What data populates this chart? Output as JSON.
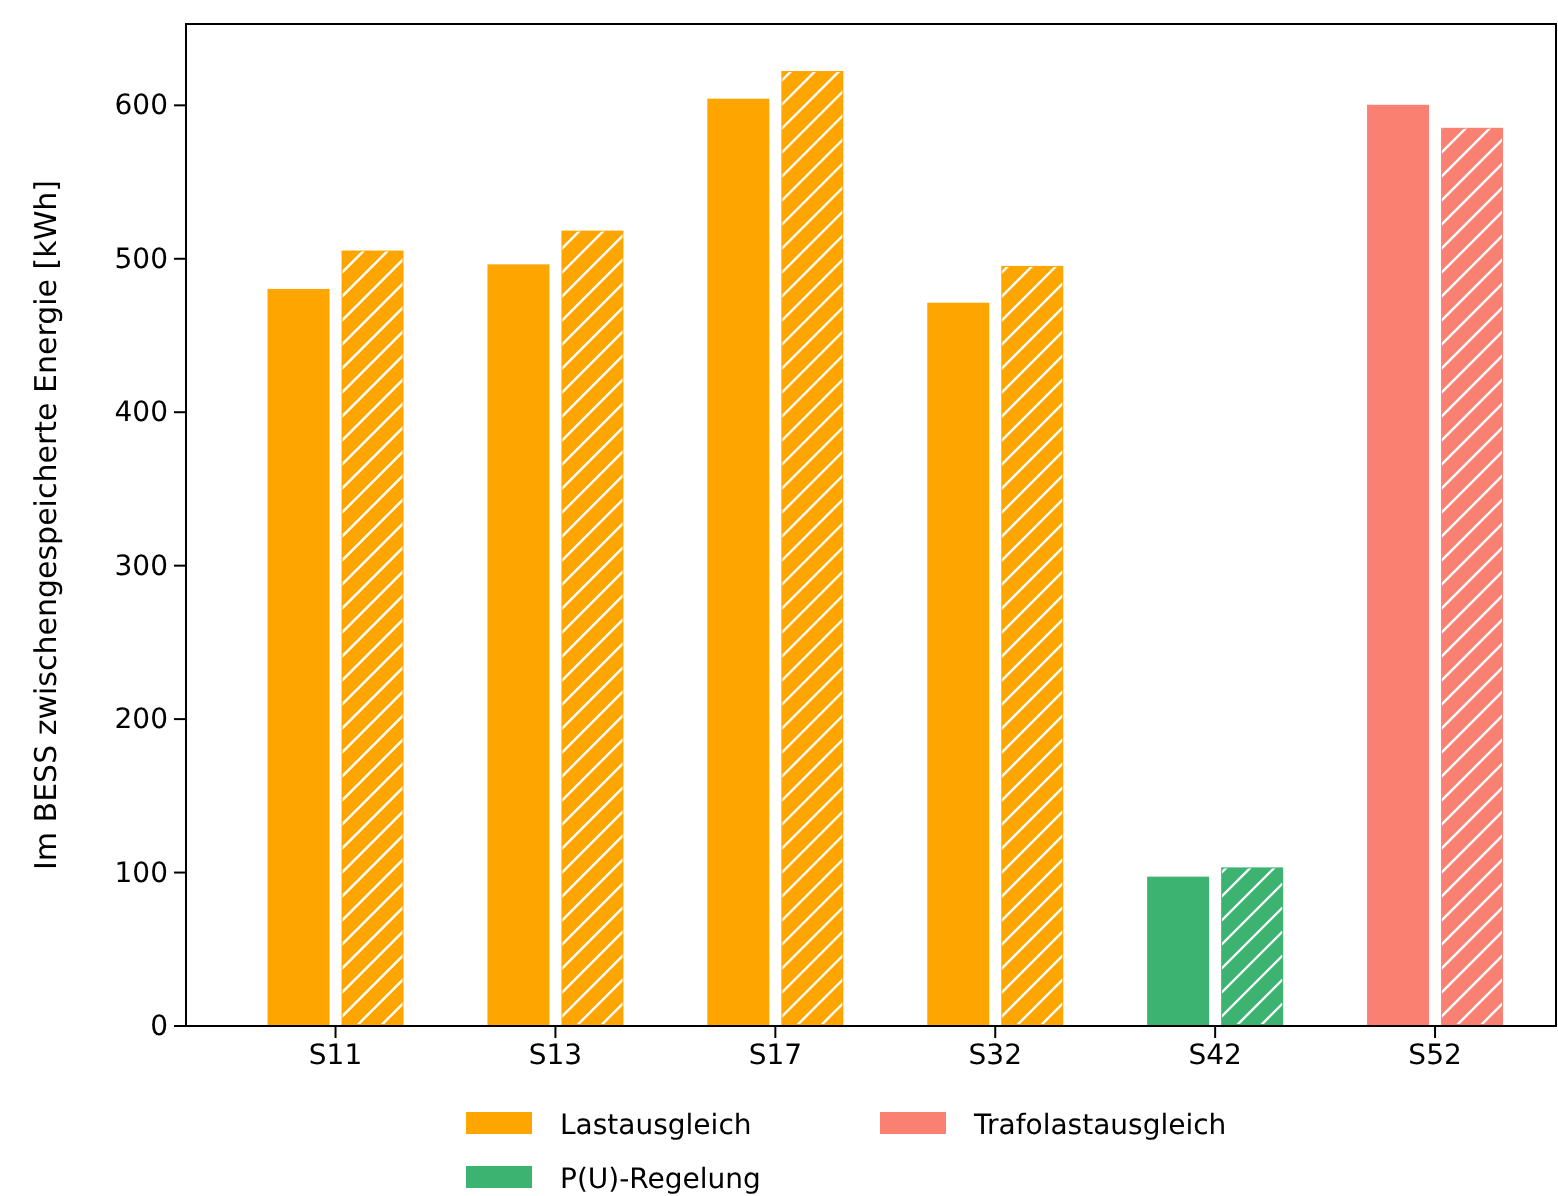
{
  "chart_data": {
    "type": "bar",
    "ylabel": "Im BESS zwischengespeicherte Energie [kWh]",
    "categories": [
      "S11",
      "S13",
      "S17",
      "S32",
      "S42",
      "S52"
    ],
    "series": [
      {
        "name": "Lastausgleich",
        "color": "#ffa500",
        "values": [
          481,
          497,
          605,
          472,
          null,
          null
        ]
      },
      {
        "name": "P(U)-Regelung",
        "color": "#3cb371",
        "values": [
          null,
          null,
          null,
          null,
          98,
          null
        ]
      },
      {
        "name": "Trafolastausgleich",
        "color": "#fa8072",
        "values": [
          null,
          null,
          null,
          null,
          null,
          601
        ]
      },
      {
        "color": "#ffa500",
        "values": [
          506,
          519,
          623,
          496,
          null,
          null
        ]
      },
      {
        "color": "#3cb371",
        "values": [
          null,
          null,
          null,
          null,
          104,
          null
        ]
      },
      {
        "color": "#fa8072",
        "values": [
          null,
          null,
          null,
          null,
          null,
          586
        ]
      }
    ],
    "ylim": [
      0,
      653
    ],
    "yticks": [
      0,
      100,
      200,
      300,
      400,
      500,
      600
    ],
    "grid": false,
    "legend": "bottom"
  }
}
